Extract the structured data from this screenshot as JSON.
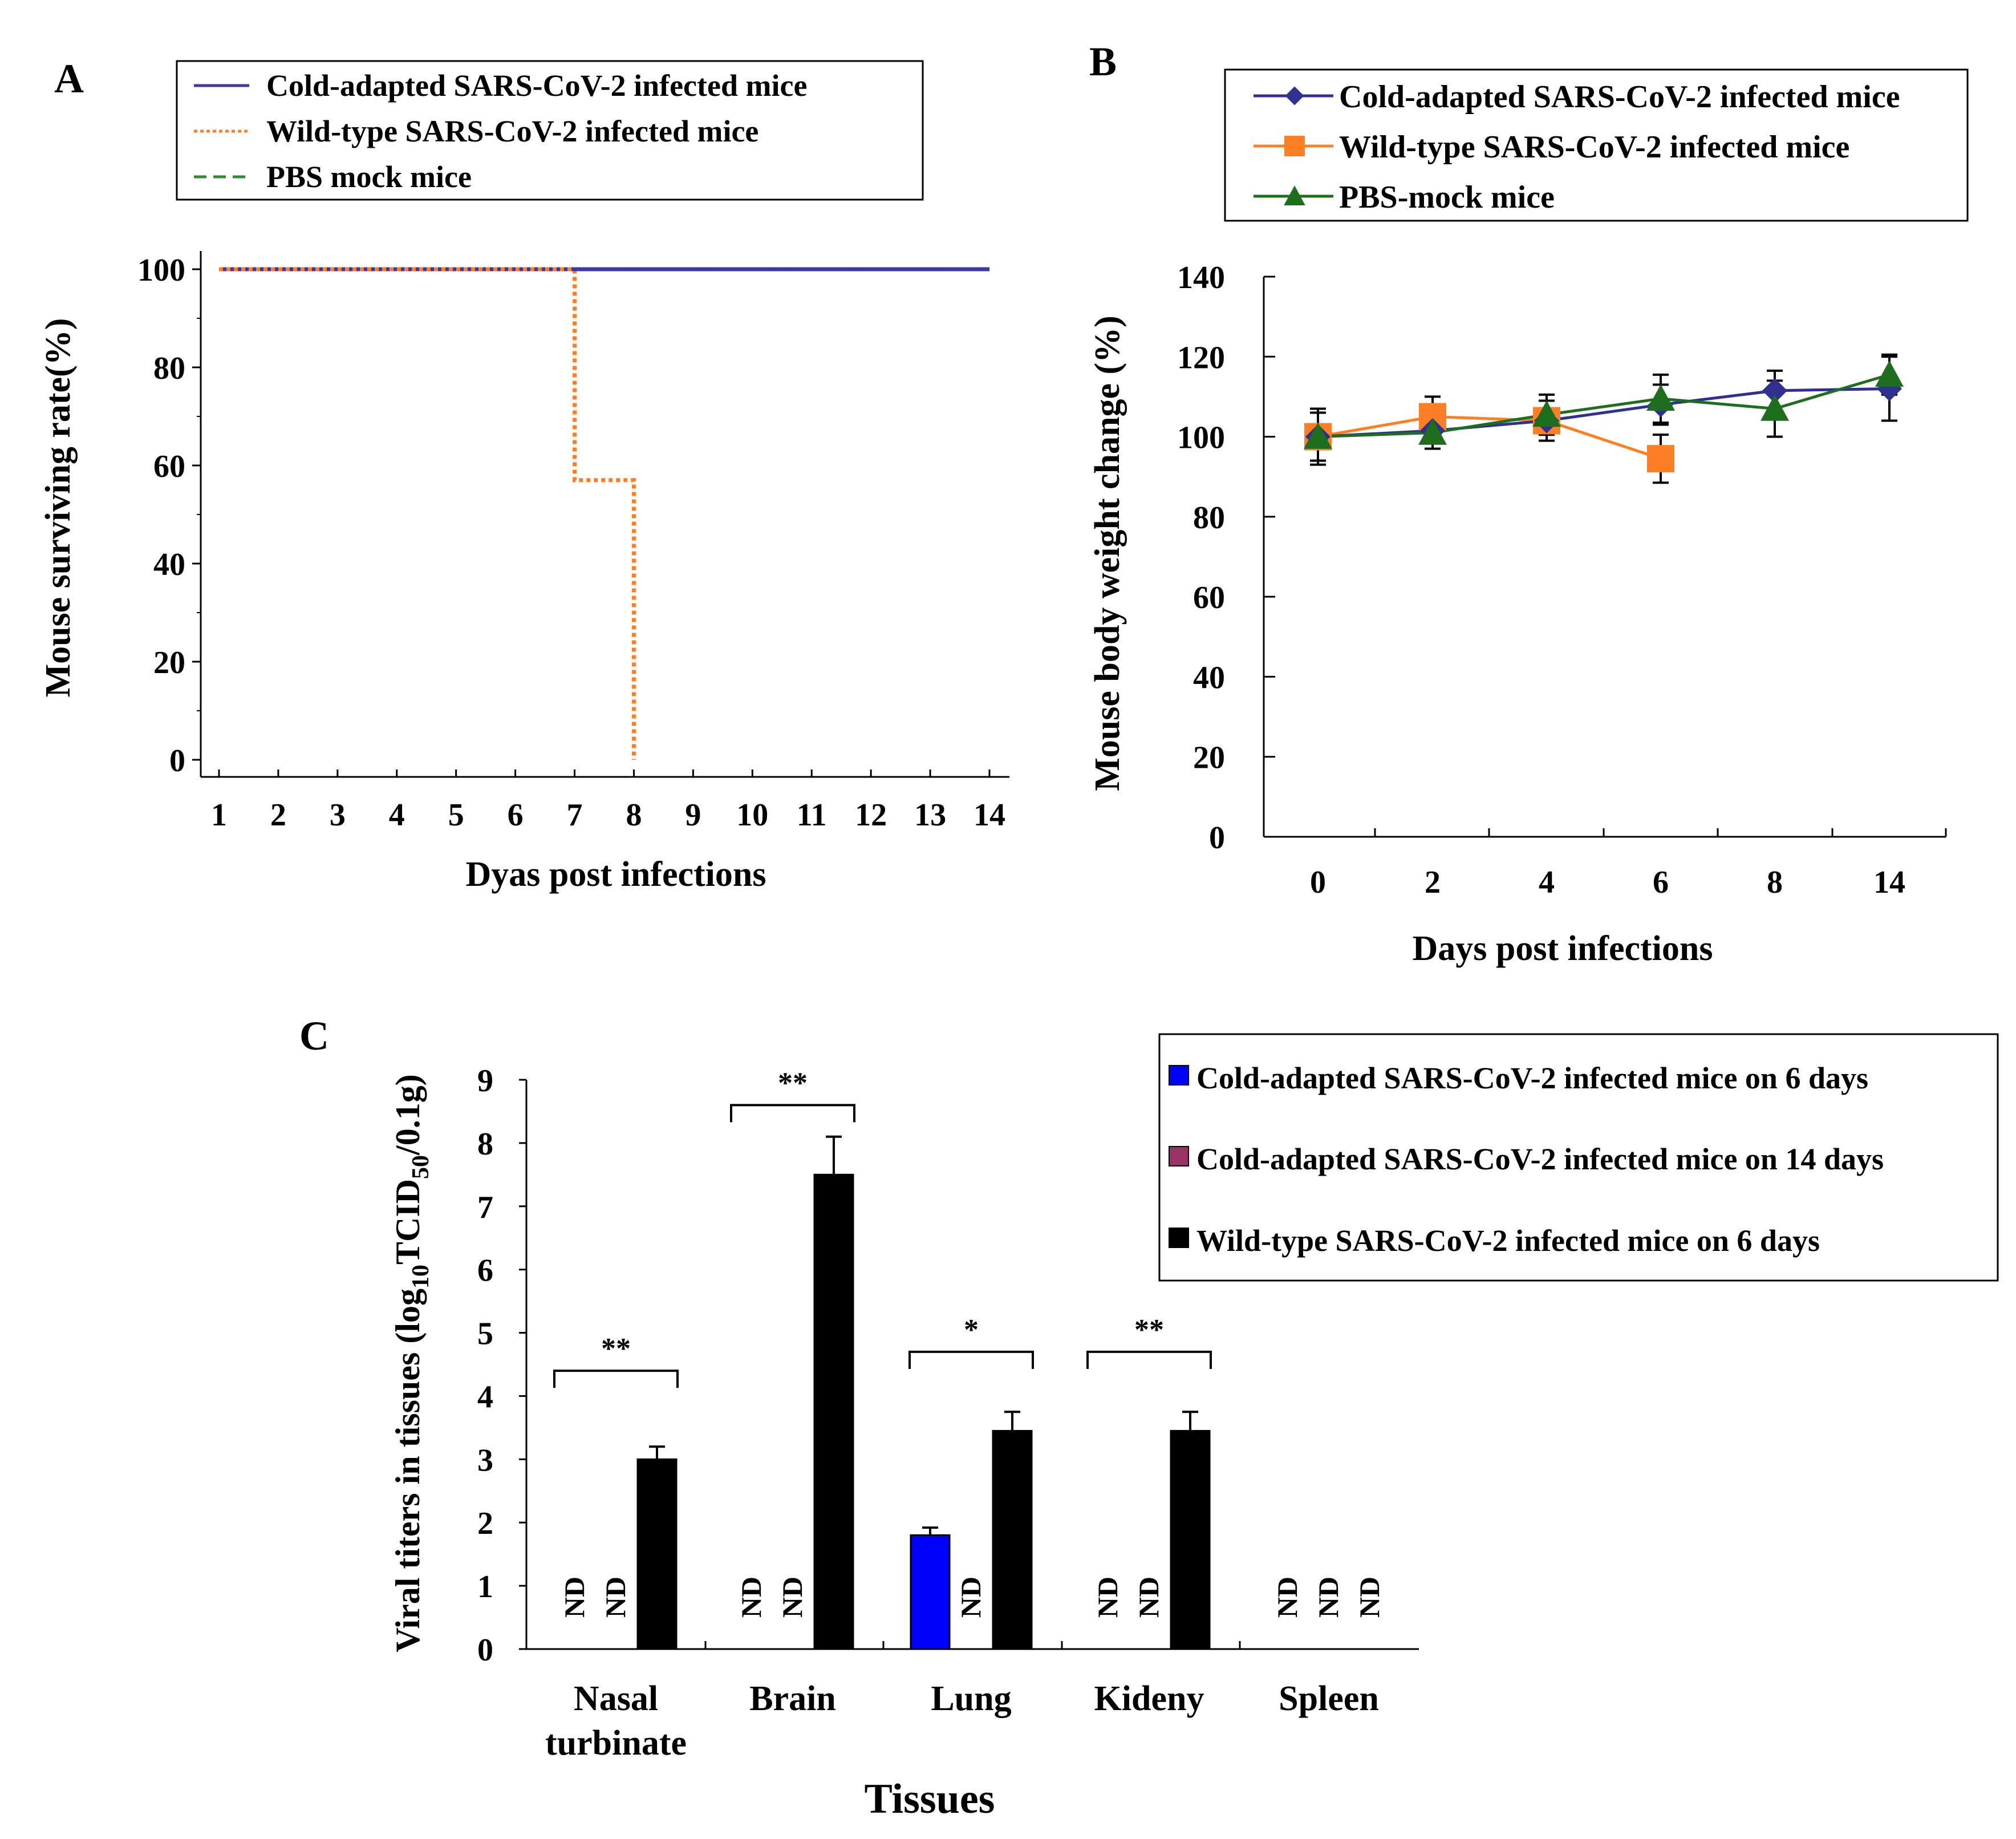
{
  "chart_data": [
    {
      "panel": "A",
      "type": "line",
      "xlabel": "Dyas post infections",
      "ylabel": "Mouse surviving rate(%)",
      "x": [
        1,
        2,
        3,
        4,
        5,
        6,
        7,
        8,
        9,
        10,
        11,
        12,
        13,
        14
      ],
      "xticks": [
        "1",
        "2",
        "3",
        "4",
        "5",
        "6",
        "7",
        "8",
        "9",
        "10",
        "11",
        "12",
        "13",
        "14"
      ],
      "yticks": [
        "0",
        "20",
        "40",
        "60",
        "80",
        "100"
      ],
      "ylim": [
        0,
        100
      ],
      "step": true,
      "legend": [
        "Cold-adapted SARS-CoV-2 infected mice",
        "Wild-type SARS-CoV-2 infected mice",
        "PBS mock mice"
      ],
      "series": [
        {
          "name": "Cold-adapted SARS-CoV-2 infected mice",
          "color": "#3a3aa0",
          "style": "solid",
          "points": [
            [
              1,
              100
            ],
            [
              14,
              100
            ]
          ]
        },
        {
          "name": "Wild-type SARS-CoV-2 infected mice",
          "color": "#ff7f27",
          "style": "dotted",
          "points": [
            [
              1,
              100
            ],
            [
              7,
              100
            ],
            [
              7,
              57
            ],
            [
              8,
              57
            ],
            [
              8,
              0
            ]
          ]
        },
        {
          "name": "PBS mock mice",
          "color": "#2e8b2e",
          "style": "dashed",
          "points": [
            [
              1,
              100
            ],
            [
              14,
              100
            ]
          ]
        }
      ]
    },
    {
      "panel": "B",
      "type": "line",
      "xlabel": "Days post infections",
      "ylabel": "Mouse body weight change (%)",
      "categories": [
        "0",
        "2",
        "4",
        "6",
        "8",
        "14"
      ],
      "yticks": [
        "0",
        "20",
        "40",
        "60",
        "80",
        "100",
        "120",
        "140"
      ],
      "ylim": [
        0,
        140
      ],
      "legend": [
        "Cold-adapted SARS-CoV-2 infected mice",
        "Wild-type SARS-CoV-2 infected mice",
        "PBS-mock mice"
      ],
      "series": [
        {
          "name": "Cold-adapted SARS-CoV-2 infected mice",
          "color": "#303090",
          "marker": "diamond",
          "values": [
            100,
            101.5,
            104,
            108,
            111.5,
            112
          ],
          "errors": [
            6,
            3,
            3,
            5,
            5,
            8
          ]
        },
        {
          "name": "Wild-type SARS-CoV-2 infected mice",
          "color": "#ff7f27",
          "marker": "square",
          "values": [
            100,
            105,
            104,
            94.5,
            null,
            null
          ],
          "errors": [
            6,
            5,
            5,
            6,
            null,
            null
          ]
        },
        {
          "name": "PBS-mock mice",
          "color": "#1e6e1e",
          "marker": "triangle",
          "values": [
            100,
            101,
            105.5,
            109.5,
            107,
            115.5
          ],
          "errors": [
            7,
            4,
            5,
            6,
            7,
            5
          ]
        }
      ]
    },
    {
      "panel": "C",
      "type": "bar",
      "xlabel": "Tissues",
      "ylabel_main": "Viral titers in tissues (log",
      "ylabel_sub1": "10",
      "ylabel_mid": "TCID",
      "ylabel_sub2": "50",
      "ylabel_end": "/0.1g)",
      "categories": [
        [
          "Nasal",
          "turbinate"
        ],
        [
          "Brain"
        ],
        [
          "Lung"
        ],
        [
          "Kideny"
        ],
        [
          "Spleen"
        ]
      ],
      "yticks": [
        "0",
        "1",
        "2",
        "3",
        "4",
        "5",
        "6",
        "7",
        "8",
        "9"
      ],
      "ylim": [
        0,
        9
      ],
      "legend": [
        "Cold-adapted SARS-CoV-2 infected mice on 6 days",
        "Cold-adapted SARS-CoV-2 infected mice on 14 days",
        "Wild-type SARS-CoV-2 infected mice on 6 days"
      ],
      "nd_label": "ND",
      "series": [
        {
          "name": "Cold-adapted SARS-CoV-2 infected mice on 6 days",
          "color": "#0000ff",
          "values": [
            null,
            null,
            1.8,
            null,
            null
          ],
          "errors": [
            null,
            null,
            0.12,
            null,
            null
          ]
        },
        {
          "name": "Cold-adapted SARS-CoV-2 infected mice on 14 days",
          "color": "#993366",
          "values": [
            null,
            null,
            null,
            null,
            null
          ],
          "errors": [
            null,
            null,
            null,
            null,
            null
          ]
        },
        {
          "name": "Wild-type SARS-CoV-2 infected mice on 6 days",
          "color": "#000000",
          "values": [
            3.0,
            7.5,
            3.45,
            3.45,
            null
          ],
          "errors": [
            0.2,
            0.6,
            0.3,
            0.3,
            null
          ]
        }
      ],
      "significance": [
        "**",
        "**",
        "*",
        "**",
        ""
      ],
      "sig_level": [
        4.4,
        8.6,
        4.7,
        4.7,
        null
      ]
    }
  ],
  "panel_labels": {
    "a": "A",
    "b": "B",
    "c": "C"
  }
}
